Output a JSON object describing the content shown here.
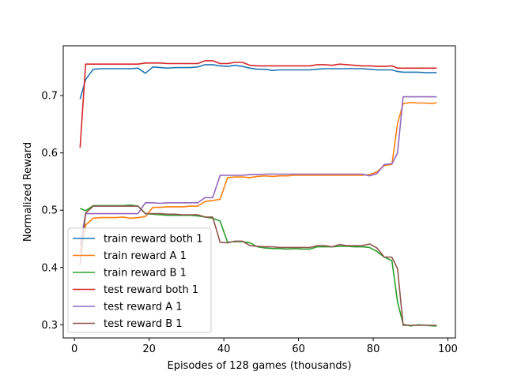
{
  "chart_data": {
    "type": "line",
    "xlabel": "Episodes of 128 games (thousands)",
    "ylabel": "Normalized Reward",
    "xlim": [
      -3,
      102
    ],
    "ylim": [
      0.277,
      0.787
    ],
    "xticks": [
      0,
      20,
      40,
      60,
      80,
      100
    ],
    "yticks": [
      0.3,
      0.4,
      0.5,
      0.6,
      0.7
    ],
    "ytick_labels": [
      "0.3",
      "0.4",
      "0.5",
      "0.6",
      "0.7"
    ],
    "grid": false,
    "legend_position": "lower-left",
    "x": [
      1.5,
      3,
      5,
      7,
      9,
      11,
      13,
      15,
      17,
      19,
      21,
      23,
      25,
      27,
      29,
      31,
      33,
      35,
      37,
      39,
      41,
      43,
      45,
      47,
      49,
      51,
      53,
      55,
      57,
      59,
      61,
      63,
      65,
      67,
      69,
      71,
      73,
      75,
      77,
      79,
      81,
      83,
      85,
      86.5,
      88,
      90,
      92,
      94,
      96,
      97
    ],
    "series": [
      {
        "name": "train reward both 1",
        "color": "#1f77b4",
        "values": [
          0.694,
          0.728,
          0.746,
          0.747,
          0.747,
          0.747,
          0.747,
          0.747,
          0.748,
          0.739,
          0.75,
          0.749,
          0.748,
          0.749,
          0.749,
          0.749,
          0.75,
          0.754,
          0.754,
          0.752,
          0.751,
          0.753,
          0.751,
          0.748,
          0.746,
          0.746,
          0.744,
          0.745,
          0.745,
          0.745,
          0.745,
          0.745,
          0.746,
          0.747,
          0.747,
          0.747,
          0.747,
          0.747,
          0.747,
          0.746,
          0.745,
          0.745,
          0.745,
          0.742,
          0.741,
          0.741,
          0.741,
          0.74,
          0.74,
          0.74
        ]
      },
      {
        "name": "train reward A 1",
        "color": "#ff7f0e",
        "values": [
          0.426,
          0.474,
          0.486,
          0.487,
          0.487,
          0.487,
          0.488,
          0.486,
          0.487,
          0.489,
          0.505,
          0.505,
          0.506,
          0.506,
          0.506,
          0.507,
          0.507,
          0.515,
          0.517,
          0.519,
          0.557,
          0.558,
          0.558,
          0.557,
          0.559,
          0.56,
          0.559,
          0.56,
          0.56,
          0.561,
          0.561,
          0.561,
          0.561,
          0.561,
          0.561,
          0.561,
          0.561,
          0.561,
          0.561,
          0.562,
          0.567,
          0.578,
          0.58,
          0.651,
          0.686,
          0.688,
          0.687,
          0.687,
          0.686,
          0.688
        ]
      },
      {
        "name": "train reward B 1",
        "color": "#2ca02c",
        "values": [
          0.503,
          0.499,
          0.508,
          0.508,
          0.508,
          0.508,
          0.508,
          0.509,
          0.507,
          0.494,
          0.493,
          0.492,
          0.491,
          0.491,
          0.491,
          0.491,
          0.49,
          0.488,
          0.486,
          0.481,
          0.444,
          0.445,
          0.445,
          0.443,
          0.436,
          0.434,
          0.433,
          0.433,
          0.432,
          0.433,
          0.432,
          0.432,
          0.436,
          0.436,
          0.436,
          0.437,
          0.437,
          0.436,
          0.436,
          0.435,
          0.428,
          0.418,
          0.412,
          0.34,
          0.301,
          0.298,
          0.3,
          0.299,
          0.298,
          0.298
        ]
      },
      {
        "name": "test reward both 1",
        "color": "#d62728",
        "values": [
          0.609,
          0.755,
          0.755,
          0.755,
          0.755,
          0.755,
          0.755,
          0.755,
          0.755,
          0.757,
          0.757,
          0.757,
          0.756,
          0.756,
          0.756,
          0.756,
          0.756,
          0.761,
          0.761,
          0.756,
          0.756,
          0.758,
          0.758,
          0.753,
          0.752,
          0.752,
          0.752,
          0.752,
          0.752,
          0.752,
          0.752,
          0.752,
          0.754,
          0.754,
          0.753,
          0.755,
          0.754,
          0.753,
          0.752,
          0.752,
          0.751,
          0.751,
          0.752,
          0.748,
          0.748,
          0.748,
          0.748,
          0.748,
          0.748,
          0.748
        ]
      },
      {
        "name": "test reward A 1",
        "color": "#9467bd",
        "values": [
          0.439,
          0.494,
          0.494,
          0.494,
          0.494,
          0.494,
          0.494,
          0.494,
          0.494,
          0.513,
          0.513,
          0.512,
          0.513,
          0.513,
          0.513,
          0.513,
          0.513,
          0.522,
          0.522,
          0.561,
          0.561,
          0.561,
          0.561,
          0.562,
          0.562,
          0.563,
          0.563,
          0.563,
          0.563,
          0.563,
          0.563,
          0.563,
          0.563,
          0.563,
          0.563,
          0.563,
          0.563,
          0.563,
          0.563,
          0.56,
          0.564,
          0.58,
          0.581,
          0.6,
          0.698,
          0.698,
          0.698,
          0.698,
          0.698,
          0.698
        ]
      },
      {
        "name": "test reward B 1",
        "color": "#8c564b",
        "values": [
          0.404,
          0.495,
          0.507,
          0.507,
          0.507,
          0.507,
          0.507,
          0.507,
          0.507,
          0.494,
          0.494,
          0.494,
          0.493,
          0.493,
          0.492,
          0.492,
          0.492,
          0.488,
          0.488,
          0.444,
          0.443,
          0.446,
          0.446,
          0.438,
          0.437,
          0.436,
          0.436,
          0.435,
          0.435,
          0.435,
          0.435,
          0.435,
          0.438,
          0.438,
          0.436,
          0.44,
          0.438,
          0.438,
          0.438,
          0.441,
          0.434,
          0.418,
          0.418,
          0.398,
          0.299,
          0.299,
          0.299,
          0.299,
          0.299,
          0.299
        ]
      }
    ]
  }
}
